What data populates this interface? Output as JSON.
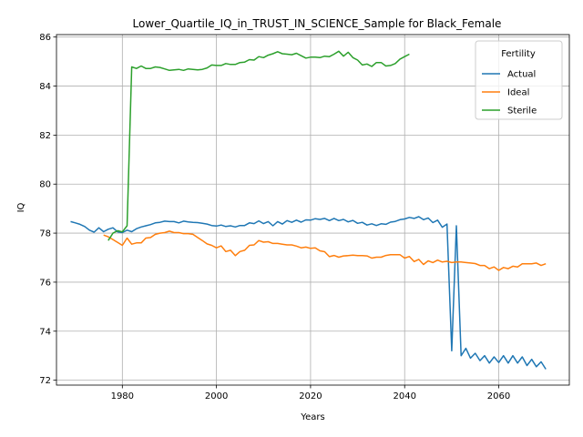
{
  "chart_data": {
    "type": "line",
    "title": "Lower_Quartile_IQ_in_TRUST_IN_SCIENCE_Sample for Black_Female",
    "xlabel": "Years",
    "ylabel": "IQ",
    "xlim": [
      1966,
      2075
    ],
    "ylim": [
      71.8,
      86.1
    ],
    "xticks": [
      1980,
      2000,
      2020,
      2040,
      2060
    ],
    "yticks": [
      72,
      74,
      76,
      78,
      80,
      82,
      84,
      86
    ],
    "grid": true,
    "legend": {
      "title": "Fertility",
      "placement": "top-right"
    },
    "series": [
      {
        "name": "Actual",
        "color": "#1f77b4",
        "x": [
          1969,
          1970,
          1971,
          1972,
          1973,
          1974,
          1975,
          1976,
          1977,
          1978,
          1979,
          1980,
          1981,
          1982,
          1983,
          1984,
          1985,
          1986,
          1987,
          1988,
          1989,
          1990,
          1991,
          1992,
          1993,
          1994,
          1995,
          1996,
          1997,
          1998,
          1999,
          2000,
          2001,
          2002,
          2003,
          2004,
          2005,
          2006,
          2007,
          2008,
          2009,
          2010,
          2011,
          2012,
          2013,
          2014,
          2015,
          2016,
          2017,
          2018,
          2019,
          2020,
          2021,
          2022,
          2023,
          2024,
          2025,
          2026,
          2027,
          2028,
          2029,
          2030,
          2031,
          2032,
          2033,
          2034,
          2035,
          2036,
          2037,
          2038,
          2039,
          2040,
          2041,
          2042,
          2043,
          2044,
          2045,
          2046,
          2047,
          2048,
          2049,
          2050,
          2051,
          2052,
          2053,
          2054,
          2055,
          2056,
          2057,
          2058,
          2059,
          2060,
          2061,
          2062,
          2063,
          2064,
          2065,
          2066,
          2067,
          2068,
          2069,
          2070
        ],
        "y": [
          78.47,
          78.42,
          78.36,
          78.27,
          78.12,
          78.04,
          78.22,
          78.06,
          78.16,
          78.22,
          78.05,
          78.02,
          78.12,
          78.06,
          78.18,
          78.25,
          78.3,
          78.35,
          78.42,
          78.44,
          78.49,
          78.47,
          78.47,
          78.42,
          78.49,
          78.46,
          78.44,
          78.43,
          78.4,
          78.37,
          78.31,
          78.29,
          78.33,
          78.27,
          78.3,
          78.25,
          78.31,
          78.31,
          78.42,
          78.39,
          78.5,
          78.39,
          78.47,
          78.3,
          78.47,
          78.37,
          78.51,
          78.44,
          78.53,
          78.45,
          78.54,
          78.53,
          78.59,
          78.56,
          78.6,
          78.51,
          78.6,
          78.51,
          78.56,
          78.46,
          78.52,
          78.4,
          78.44,
          78.33,
          78.38,
          78.31,
          78.38,
          78.36,
          78.45,
          78.48,
          78.55,
          78.58,
          78.64,
          78.6,
          78.67,
          78.55,
          78.62,
          78.43,
          78.53,
          78.24,
          78.37,
          73.2,
          78.3,
          73.0,
          73.3,
          72.9,
          73.1,
          72.8,
          73.0,
          72.7,
          72.95,
          72.72,
          73.0,
          72.7,
          73.0,
          72.7,
          72.95,
          72.6,
          72.85,
          72.55,
          72.75,
          72.45
        ]
      },
      {
        "name": "Ideal",
        "color": "#ff7f0e",
        "x": [
          1976,
          1977,
          1978,
          1979,
          1980,
          1981,
          1982,
          1983,
          1984,
          1985,
          1986,
          1987,
          1988,
          1989,
          1990,
          1991,
          1992,
          1993,
          1994,
          1995,
          1996,
          1997,
          1998,
          1999,
          2000,
          2001,
          2002,
          2003,
          2004,
          2005,
          2006,
          2007,
          2008,
          2009,
          2010,
          2011,
          2012,
          2013,
          2014,
          2015,
          2016,
          2017,
          2018,
          2019,
          2020,
          2021,
          2022,
          2023,
          2024,
          2025,
          2026,
          2027,
          2028,
          2029,
          2030,
          2031,
          2032,
          2033,
          2034,
          2035,
          2036,
          2037,
          2038,
          2039,
          2040,
          2041,
          2042,
          2043,
          2044,
          2045,
          2046,
          2047,
          2048,
          2049,
          2050,
          2051,
          2052,
          2053,
          2054,
          2055,
          2056,
          2057,
          2058,
          2059,
          2060,
          2061,
          2062,
          2063,
          2064,
          2065,
          2066,
          2067,
          2068,
          2069,
          2070
        ],
        "y": [
          77.92,
          77.85,
          77.74,
          77.62,
          77.5,
          77.8,
          77.55,
          77.6,
          77.6,
          77.8,
          77.82,
          77.95,
          78.0,
          78.02,
          78.08,
          78.02,
          78.02,
          77.98,
          77.98,
          77.95,
          77.82,
          77.7,
          77.56,
          77.5,
          77.4,
          77.48,
          77.25,
          77.3,
          77.08,
          77.25,
          77.3,
          77.5,
          77.52,
          77.7,
          77.63,
          77.65,
          77.58,
          77.58,
          77.55,
          77.52,
          77.52,
          77.47,
          77.4,
          77.43,
          77.38,
          77.4,
          77.28,
          77.24,
          77.04,
          77.09,
          77.02,
          77.07,
          77.08,
          77.1,
          77.08,
          77.08,
          77.07,
          76.98,
          77.02,
          77.02,
          77.09,
          77.12,
          77.12,
          77.12,
          76.98,
          77.05,
          76.84,
          76.93,
          76.72,
          76.87,
          76.8,
          76.9,
          76.82,
          76.85,
          76.8,
          76.82,
          76.82,
          76.8,
          76.78,
          76.76,
          76.68,
          76.68,
          76.55,
          76.62,
          76.48,
          76.6,
          76.55,
          76.65,
          76.62,
          76.75,
          76.75,
          76.75,
          76.78,
          76.68,
          76.75
        ]
      },
      {
        "name": "Sterile",
        "color": "#2ca02c",
        "x": [
          1977,
          1978,
          1979,
          1980,
          1981,
          1982,
          1983,
          1984,
          1985,
          1986,
          1987,
          1988,
          1989,
          1990,
          1991,
          1992,
          1993,
          1994,
          1995,
          1996,
          1997,
          1998,
          1999,
          2000,
          2001,
          2002,
          2003,
          2004,
          2005,
          2006,
          2007,
          2008,
          2009,
          2010,
          2011,
          2012,
          2013,
          2014,
          2015,
          2016,
          2017,
          2018,
          2019,
          2020,
          2021,
          2022,
          2023,
          2024,
          2025,
          2026,
          2027,
          2028,
          2029,
          2030,
          2031,
          2032,
          2033,
          2034,
          2035,
          2036,
          2037,
          2038,
          2039,
          2040,
          2041
        ],
        "y": [
          77.7,
          78.0,
          78.1,
          78.05,
          78.3,
          84.78,
          84.72,
          84.82,
          84.72,
          84.72,
          84.78,
          84.76,
          84.7,
          84.64,
          84.66,
          84.68,
          84.64,
          84.7,
          84.68,
          84.66,
          84.68,
          84.74,
          84.86,
          84.84,
          84.84,
          84.92,
          84.88,
          84.88,
          84.96,
          84.98,
          85.08,
          85.06,
          85.2,
          85.16,
          85.26,
          85.32,
          85.4,
          85.32,
          85.3,
          85.28,
          85.34,
          85.24,
          85.14,
          85.18,
          85.18,
          85.16,
          85.22,
          85.2,
          85.3,
          85.42,
          85.22,
          85.38,
          85.16,
          85.06,
          84.86,
          84.9,
          84.8,
          84.96,
          84.96,
          84.82,
          84.84,
          84.92,
          85.1,
          85.2,
          85.3
        ]
      }
    ]
  }
}
